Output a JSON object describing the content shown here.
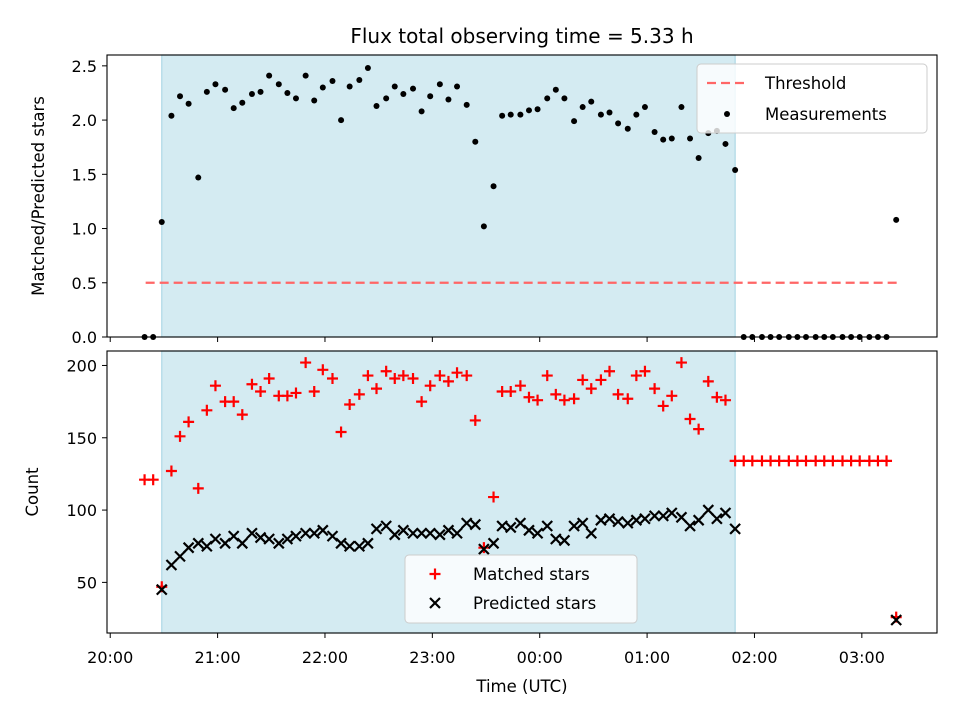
{
  "title": "Flux total observing time = 5.33 h",
  "x_label": "Time (UTC)",
  "colors": {
    "shade": "#add8e6",
    "threshold": "#ff6666",
    "matched": "#ff0000",
    "predicted": "#000000",
    "measurements": "#000000"
  },
  "chart_data": [
    {
      "type": "scatter",
      "ylabel": "Matched/Predicted stars",
      "ylim": [
        0,
        2.6
      ],
      "yticks": [
        0.0,
        0.5,
        1.0,
        1.5,
        2.0,
        2.5
      ],
      "ytick_labels": [
        "0.0",
        "0.5",
        "1.0",
        "1.5",
        "2.0",
        "2.5"
      ],
      "xlim": [
        19.97,
        27.7
      ],
      "xticks": [
        20,
        21,
        22,
        23,
        24,
        25,
        26,
        27
      ],
      "xtick_labels": [
        "20:00",
        "21:00",
        "22:00",
        "23:00",
        "00:00",
        "01:00",
        "02:00",
        "03:00"
      ],
      "shaded_span": [
        20.48,
        25.82
      ],
      "legend": {
        "position": "upper right",
        "entries": [
          "Threshold",
          "Measurements"
        ]
      },
      "series": [
        {
          "name": "Threshold",
          "kind": "hline",
          "value": 0.5,
          "x_range": [
            20.33,
            27.33
          ]
        },
        {
          "name": "Measurements",
          "kind": "points",
          "points": [
            [
              20.32,
              0
            ],
            [
              20.4,
              0
            ],
            [
              20.48,
              1.06
            ],
            [
              20.57,
              2.04
            ],
            [
              20.65,
              2.22
            ],
            [
              20.73,
              2.15
            ],
            [
              20.82,
              1.47
            ],
            [
              20.9,
              2.26
            ],
            [
              20.98,
              2.33
            ],
            [
              21.07,
              2.28
            ],
            [
              21.15,
              2.11
            ],
            [
              21.23,
              2.16
            ],
            [
              21.32,
              2.24
            ],
            [
              21.4,
              2.26
            ],
            [
              21.48,
              2.41
            ],
            [
              21.57,
              2.33
            ],
            [
              21.65,
              2.25
            ],
            [
              21.73,
              2.2
            ],
            [
              21.82,
              2.41
            ],
            [
              21.9,
              2.18
            ],
            [
              21.98,
              2.3
            ],
            [
              22.07,
              2.36
            ],
            [
              22.15,
              2.0
            ],
            [
              22.23,
              2.31
            ],
            [
              22.32,
              2.37
            ],
            [
              22.4,
              2.48
            ],
            [
              22.48,
              2.13
            ],
            [
              22.57,
              2.2
            ],
            [
              22.65,
              2.31
            ],
            [
              22.73,
              2.24
            ],
            [
              22.82,
              2.29
            ],
            [
              22.9,
              2.08
            ],
            [
              22.98,
              2.22
            ],
            [
              23.07,
              2.33
            ],
            [
              23.15,
              2.19
            ],
            [
              23.23,
              2.31
            ],
            [
              23.32,
              2.14
            ],
            [
              23.4,
              1.8
            ],
            [
              23.48,
              1.02
            ],
            [
              23.57,
              1.39
            ],
            [
              23.65,
              2.04
            ],
            [
              23.73,
              2.05
            ],
            [
              23.82,
              2.05
            ],
            [
              23.9,
              2.09
            ],
            [
              23.98,
              2.1
            ],
            [
              24.07,
              2.2
            ],
            [
              24.15,
              2.28
            ],
            [
              24.23,
              2.2
            ],
            [
              24.32,
              1.99
            ],
            [
              24.4,
              2.12
            ],
            [
              24.48,
              2.17
            ],
            [
              24.57,
              2.05
            ],
            [
              24.65,
              2.07
            ],
            [
              24.73,
              1.97
            ],
            [
              24.82,
              1.92
            ],
            [
              24.9,
              2.05
            ],
            [
              24.98,
              2.12
            ],
            [
              25.07,
              1.89
            ],
            [
              25.15,
              1.82
            ],
            [
              25.23,
              1.83
            ],
            [
              25.32,
              2.12
            ],
            [
              25.4,
              1.83
            ],
            [
              25.48,
              1.65
            ],
            [
              25.57,
              1.88
            ],
            [
              25.65,
              1.9
            ],
            [
              25.73,
              1.78
            ],
            [
              25.82,
              1.54
            ],
            [
              25.9,
              0
            ],
            [
              25.98,
              0
            ],
            [
              26.07,
              0
            ],
            [
              26.15,
              0
            ],
            [
              26.23,
              0
            ],
            [
              26.32,
              0
            ],
            [
              26.4,
              0
            ],
            [
              26.48,
              0
            ],
            [
              26.57,
              0
            ],
            [
              26.65,
              0
            ],
            [
              26.73,
              0
            ],
            [
              26.82,
              0
            ],
            [
              26.9,
              0
            ],
            [
              26.98,
              0
            ],
            [
              27.07,
              0
            ],
            [
              27.15,
              0
            ],
            [
              27.23,
              0
            ],
            [
              27.32,
              1.08
            ]
          ]
        }
      ]
    },
    {
      "type": "scatter",
      "ylabel": "Count",
      "ylim": [
        15,
        210
      ],
      "yticks": [
        50,
        100,
        150,
        200
      ],
      "ytick_labels": [
        "50",
        "100",
        "150",
        "200"
      ],
      "xlim": [
        19.97,
        27.7
      ],
      "xticks": [
        20,
        21,
        22,
        23,
        24,
        25,
        26,
        27
      ],
      "xtick_labels": [
        "20:00",
        "21:00",
        "22:00",
        "23:00",
        "00:00",
        "01:00",
        "02:00",
        "03:00"
      ],
      "shaded_span": [
        20.48,
        25.82
      ],
      "legend": {
        "position": "lower center",
        "entries": [
          "Matched stars",
          "Predicted stars"
        ]
      },
      "series": [
        {
          "name": "Matched stars",
          "marker": "plus",
          "points": [
            [
              20.32,
              121
            ],
            [
              20.4,
              121
            ],
            [
              20.48,
              47
            ],
            [
              20.57,
              127
            ],
            [
              20.65,
              151
            ],
            [
              20.73,
              161
            ],
            [
              20.82,
              115
            ],
            [
              20.9,
              169
            ],
            [
              20.98,
              186
            ],
            [
              21.07,
              175
            ],
            [
              21.15,
              175
            ],
            [
              21.23,
              166
            ],
            [
              21.32,
              187
            ],
            [
              21.4,
              182
            ],
            [
              21.48,
              191
            ],
            [
              21.57,
              179
            ],
            [
              21.65,
              179
            ],
            [
              21.73,
              181
            ],
            [
              21.82,
              202
            ],
            [
              21.9,
              182
            ],
            [
              21.98,
              197
            ],
            [
              22.07,
              191
            ],
            [
              22.15,
              154
            ],
            [
              22.23,
              173
            ],
            [
              22.32,
              180
            ],
            [
              22.4,
              193
            ],
            [
              22.48,
              184
            ],
            [
              22.57,
              196
            ],
            [
              22.65,
              191
            ],
            [
              22.73,
              193
            ],
            [
              22.82,
              191
            ],
            [
              22.9,
              175
            ],
            [
              22.98,
              186
            ],
            [
              23.07,
              193
            ],
            [
              23.15,
              189
            ],
            [
              23.23,
              195
            ],
            [
              23.32,
              193
            ],
            [
              23.4,
              162
            ],
            [
              23.48,
              74
            ],
            [
              23.57,
              109
            ],
            [
              23.65,
              182
            ],
            [
              23.73,
              182
            ],
            [
              23.82,
              186
            ],
            [
              23.9,
              178
            ],
            [
              23.98,
              176
            ],
            [
              24.07,
              193
            ],
            [
              24.15,
              180
            ],
            [
              24.23,
              176
            ],
            [
              24.32,
              177
            ],
            [
              24.4,
              190
            ],
            [
              24.48,
              184
            ],
            [
              24.57,
              190
            ],
            [
              24.65,
              196
            ],
            [
              24.73,
              180
            ],
            [
              24.82,
              177
            ],
            [
              24.9,
              193
            ],
            [
              24.98,
              196
            ],
            [
              25.07,
              184
            ],
            [
              25.15,
              172
            ],
            [
              25.23,
              179
            ],
            [
              25.32,
              202
            ],
            [
              25.4,
              163
            ],
            [
              25.48,
              156
            ],
            [
              25.57,
              189
            ],
            [
              25.65,
              178
            ],
            [
              25.73,
              176
            ],
            [
              25.82,
              134
            ],
            [
              25.9,
              134
            ],
            [
              25.98,
              134
            ],
            [
              26.07,
              134
            ],
            [
              26.15,
              134
            ],
            [
              26.23,
              134
            ],
            [
              26.32,
              134
            ],
            [
              26.4,
              134
            ],
            [
              26.48,
              134
            ],
            [
              26.57,
              134
            ],
            [
              26.65,
              134
            ],
            [
              26.73,
              134
            ],
            [
              26.82,
              134
            ],
            [
              26.9,
              134
            ],
            [
              26.98,
              134
            ],
            [
              27.07,
              134
            ],
            [
              27.15,
              134
            ],
            [
              27.23,
              134
            ],
            [
              27.32,
              26
            ]
          ]
        },
        {
          "name": "Predicted stars",
          "marker": "x",
          "points": [
            [
              20.48,
              45
            ],
            [
              20.57,
              62
            ],
            [
              20.65,
              68
            ],
            [
              20.73,
              74
            ],
            [
              20.82,
              77
            ],
            [
              20.9,
              75
            ],
            [
              20.98,
              80
            ],
            [
              21.07,
              77
            ],
            [
              21.15,
              82
            ],
            [
              21.23,
              77
            ],
            [
              21.32,
              84
            ],
            [
              21.4,
              81
            ],
            [
              21.48,
              80
            ],
            [
              21.57,
              77
            ],
            [
              21.65,
              80
            ],
            [
              21.73,
              82
            ],
            [
              21.82,
              84
            ],
            [
              21.9,
              84
            ],
            [
              21.98,
              86
            ],
            [
              22.07,
              82
            ],
            [
              22.15,
              77
            ],
            [
              22.23,
              75
            ],
            [
              22.32,
              75
            ],
            [
              22.4,
              77
            ],
            [
              22.48,
              87
            ],
            [
              22.57,
              89
            ],
            [
              22.65,
              83
            ],
            [
              22.73,
              86
            ],
            [
              22.82,
              84
            ],
            [
              22.9,
              84
            ],
            [
              22.98,
              84
            ],
            [
              23.07,
              83
            ],
            [
              23.15,
              86
            ],
            [
              23.23,
              84
            ],
            [
              23.32,
              91
            ],
            [
              23.4,
              90
            ],
            [
              23.48,
              73
            ],
            [
              23.57,
              77
            ],
            [
              23.65,
              89
            ],
            [
              23.73,
              88
            ],
            [
              23.82,
              91
            ],
            [
              23.9,
              86
            ],
            [
              23.98,
              84
            ],
            [
              24.07,
              89
            ],
            [
              24.15,
              80
            ],
            [
              24.23,
              79
            ],
            [
              24.32,
              89
            ],
            [
              24.4,
              91
            ],
            [
              24.48,
              84
            ],
            [
              24.57,
              93
            ],
            [
              24.65,
              94
            ],
            [
              24.73,
              92
            ],
            [
              24.82,
              91
            ],
            [
              24.9,
              93
            ],
            [
              24.98,
              94
            ],
            [
              25.07,
              96
            ],
            [
              25.15,
              96
            ],
            [
              25.23,
              98
            ],
            [
              25.32,
              95
            ],
            [
              25.4,
              89
            ],
            [
              25.48,
              93
            ],
            [
              25.57,
              100
            ],
            [
              25.65,
              94
            ],
            [
              25.73,
              98
            ],
            [
              25.82,
              87
            ],
            [
              27.32,
              24
            ]
          ]
        }
      ]
    }
  ]
}
